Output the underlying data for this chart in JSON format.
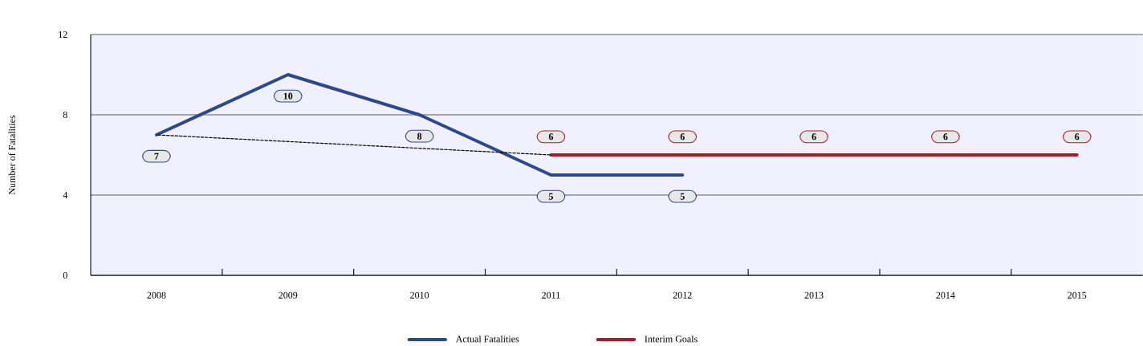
{
  "chart_data": {
    "type": "line",
    "ylabel": "Number of Fatalities",
    "categories": [
      "2008",
      "2009",
      "2010",
      "2011",
      "2012",
      "2013",
      "2014",
      "2015"
    ],
    "series": [
      {
        "name": "Actual Fatalities",
        "color": "#2b4a8e",
        "values": [
          7,
          10,
          8,
          5,
          5,
          null,
          null,
          null
        ],
        "value_labels": [
          "7",
          "10",
          "8",
          "5",
          "5",
          null,
          null,
          null
        ]
      },
      {
        "name": "Interim Goals",
        "color": "#a51c24",
        "values": [
          null,
          null,
          null,
          6,
          6,
          6,
          6,
          6
        ],
        "value_labels": [
          null,
          null,
          null,
          "6",
          "6",
          "6",
          "6",
          "6"
        ]
      },
      {
        "color": "#000000",
        "line_style": "dashed",
        "values": [
          7,
          null,
          null,
          6,
          null,
          null,
          null,
          null
        ]
      }
    ],
    "ylim": [
      0,
      12
    ],
    "yticks": [
      0,
      4,
      8,
      12
    ],
    "grid": "y",
    "legend": "bottom"
  }
}
